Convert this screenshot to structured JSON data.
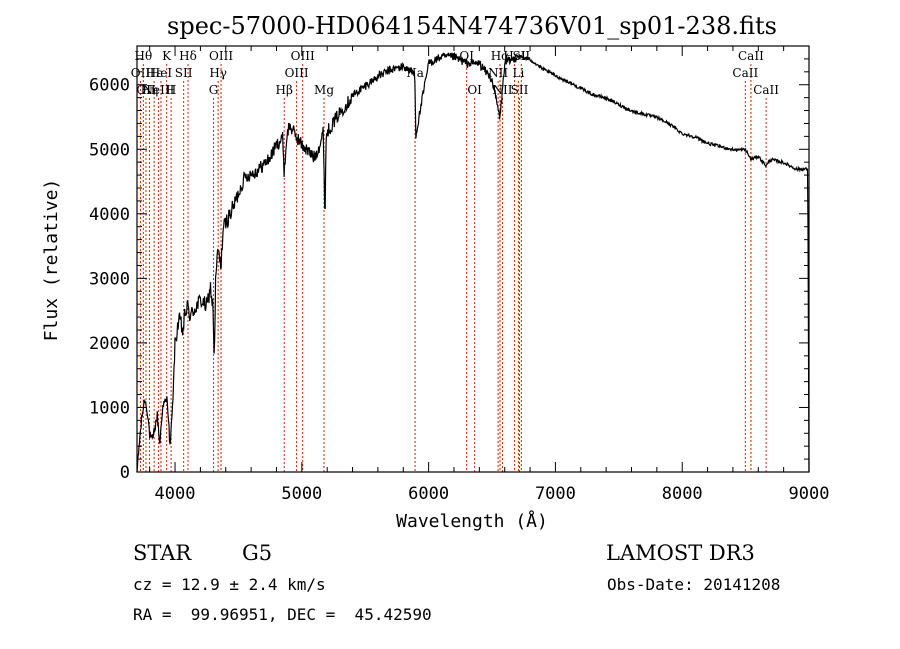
{
  "chart_data": {
    "type": "line",
    "title": "spec-57000-HD064154N474736V01_sp01-238.fits",
    "xlabel": "Wavelength (Å)",
    "ylabel": "Flux (relative)",
    "xlim": [
      3700,
      9000
    ],
    "ylim": [
      0,
      6600
    ],
    "x_ticks": [
      4000,
      5000,
      6000,
      7000,
      8000,
      9000
    ],
    "y_ticks": [
      0,
      1000,
      2000,
      3000,
      4000,
      5000,
      6000
    ],
    "grid": false,
    "series": [
      {
        "name": "flux",
        "x": [
          3700,
          3720,
          3740,
          3760,
          3780,
          3800,
          3820,
          3840,
          3860,
          3880,
          3900,
          3920,
          3940,
          3960,
          3980,
          4000,
          4020,
          4040,
          4060,
          4080,
          4100,
          4120,
          4150,
          4200,
          4250,
          4280,
          4300,
          4310,
          4320,
          4340,
          4360,
          4380,
          4400,
          4450,
          4500,
          4550,
          4600,
          4650,
          4700,
          4750,
          4800,
          4850,
          4861,
          4880,
          4900,
          4920,
          4950,
          5000,
          5050,
          5100,
          5150,
          5170,
          5183,
          5190,
          5200,
          5250,
          5300,
          5400,
          5500,
          5600,
          5700,
          5800,
          5890,
          5900,
          6000,
          6100,
          6200,
          6300,
          6400,
          6500,
          6563,
          6600,
          6700,
          6800,
          6900,
          7000,
          7100,
          7200,
          7300,
          7400,
          7500,
          7600,
          7700,
          7800,
          7900,
          8000,
          8100,
          8200,
          8300,
          8400,
          8500,
          8542,
          8600,
          8662,
          8700,
          8800,
          8900,
          8990,
          9000
        ],
        "y": [
          0,
          500,
          900,
          1150,
          1000,
          600,
          500,
          700,
          900,
          450,
          1000,
          1100,
          1150,
          400,
          1000,
          2000,
          2300,
          2400,
          2200,
          2500,
          2600,
          2450,
          2550,
          2700,
          2600,
          2900,
          2550,
          1700,
          3000,
          3500,
          3200,
          3800,
          3900,
          4100,
          4350,
          4600,
          4650,
          4700,
          4800,
          4900,
          5100,
          5200,
          4650,
          5200,
          5400,
          5350,
          5250,
          5100,
          5000,
          4900,
          5150,
          5300,
          3900,
          5200,
          5300,
          5450,
          5600,
          5850,
          6000,
          6150,
          6250,
          6300,
          6200,
          5250,
          6350,
          6450,
          6450,
          6350,
          6350,
          6100,
          5500,
          6350,
          6450,
          6400,
          6250,
          6150,
          6050,
          5950,
          5850,
          5800,
          5700,
          5600,
          5550,
          5500,
          5400,
          5250,
          5200,
          5100,
          5050,
          5000,
          5000,
          4850,
          4900,
          4750,
          4850,
          4800,
          4700,
          4700,
          0
        ]
      }
    ],
    "line_markers": [
      {
        "x": 3727,
        "label": "OII",
        "row": 1
      },
      {
        "x": 3750,
        "label": "Hθ",
        "row": 0
      },
      {
        "x": 3771,
        "label": "OII",
        "row": 2
      },
      {
        "x": 3798,
        "label": "Hη",
        "row": 2
      },
      {
        "x": 3835,
        "label": "Hε",
        "row": 1
      },
      {
        "x": 3869,
        "label": "NeIII",
        "row": 2
      },
      {
        "x": 3889,
        "label": "HeI",
        "row": 1
      },
      {
        "x": 3934,
        "label": "K",
        "row": 0
      },
      {
        "x": 3969,
        "label": "H",
        "row": 2
      },
      {
        "x": 4068,
        "label": "SII",
        "row": 1
      },
      {
        "x": 4102,
        "label": "Hδ",
        "row": 0
      },
      {
        "x": 4304,
        "label": "G",
        "row": 2
      },
      {
        "x": 4340,
        "label": "Hγ",
        "row": 1
      },
      {
        "x": 4363,
        "label": "OIII",
        "row": 0
      },
      {
        "x": 4861,
        "label": "Hβ",
        "row": 2
      },
      {
        "x": 4959,
        "label": "OIII",
        "row": 1
      },
      {
        "x": 5007,
        "label": "OIII",
        "row": 0
      },
      {
        "x": 5175,
        "label": "Mg",
        "row": 2
      },
      {
        "x": 5893,
        "label": "Na",
        "row": 1
      },
      {
        "x": 6300,
        "label": "OI",
        "row": 0
      },
      {
        "x": 6363,
        "label": "OI",
        "row": 2
      },
      {
        "x": 6548,
        "label": "NII",
        "row": 1
      },
      {
        "x": 6563,
        "label": "Hα",
        "row": 0
      },
      {
        "x": 6583,
        "label": "NII",
        "row": 2
      },
      {
        "x": 6678,
        "label": "HeI",
        "row": 0
      },
      {
        "x": 6708,
        "label": "Li",
        "row": 1
      },
      {
        "x": 6717,
        "label": "SII",
        "row": 2
      },
      {
        "x": 6731,
        "label": "SII",
        "row": 0
      },
      {
        "x": 8498,
        "label": "CaII",
        "row": 1
      },
      {
        "x": 8542,
        "label": "CaII",
        "row": 0
      },
      {
        "x": 8662,
        "label": "CaII",
        "row": 2
      }
    ]
  },
  "info": {
    "object_class": "STAR",
    "subclass": "G5",
    "survey": "LAMOST DR3",
    "cz": "cz = 12.9 ± 2.4 km/s",
    "obs_date": "Obs-Date: 20141208",
    "coords": "RA =  99.96951, DEC =  45.42590"
  },
  "colors": {
    "axis": "#000000",
    "spectrum": "#000000",
    "marker_line": "#cc2200",
    "background": "#ffffff"
  }
}
